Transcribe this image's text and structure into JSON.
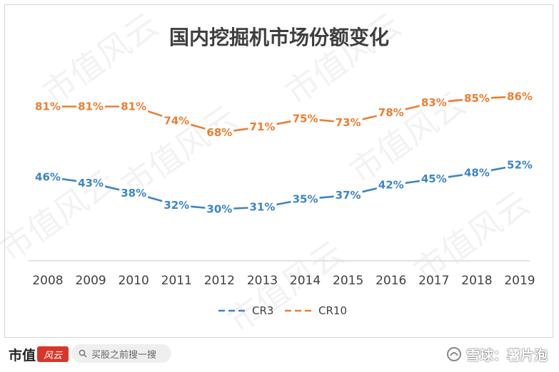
{
  "watermark": {
    "text": "市值风云"
  },
  "chart_data": {
    "type": "line",
    "title": "国内挖掘机市场份额变化",
    "categories": [
      "2008",
      "2009",
      "2010",
      "2011",
      "2012",
      "2013",
      "2014",
      "2015",
      "2016",
      "2017",
      "2018",
      "2019"
    ],
    "series": [
      {
        "name": "CR3",
        "values": [
          46,
          43,
          38,
          32,
          30,
          31,
          35,
          37,
          42,
          45,
          48,
          52
        ],
        "labels": [
          "46%",
          "43%",
          "38%",
          "32%",
          "30%",
          "31%",
          "35%",
          "37%",
          "42%",
          "45%",
          "48%",
          "52%"
        ],
        "color": "#3d85c6",
        "dashed_legend": true
      },
      {
        "name": "CR10",
        "values": [
          81,
          81,
          81,
          74,
          68,
          71,
          75,
          73,
          78,
          83,
          85,
          86
        ],
        "labels": [
          "81%",
          "81%",
          "81%",
          "74%",
          "68%",
          "71%",
          "75%",
          "73%",
          "78%",
          "83%",
          "85%",
          "86%"
        ],
        "color": "#ed7d31",
        "dashed_legend": true
      }
    ],
    "grid": false,
    "legend": "bottom",
    "ylim": [
      10,
      95
    ]
  },
  "footer": {
    "brand": "市值",
    "brand_logo": "风云",
    "search_placeholder": "买股之前搜一搜",
    "xueqiu_label": "雪球：薯片泡"
  }
}
